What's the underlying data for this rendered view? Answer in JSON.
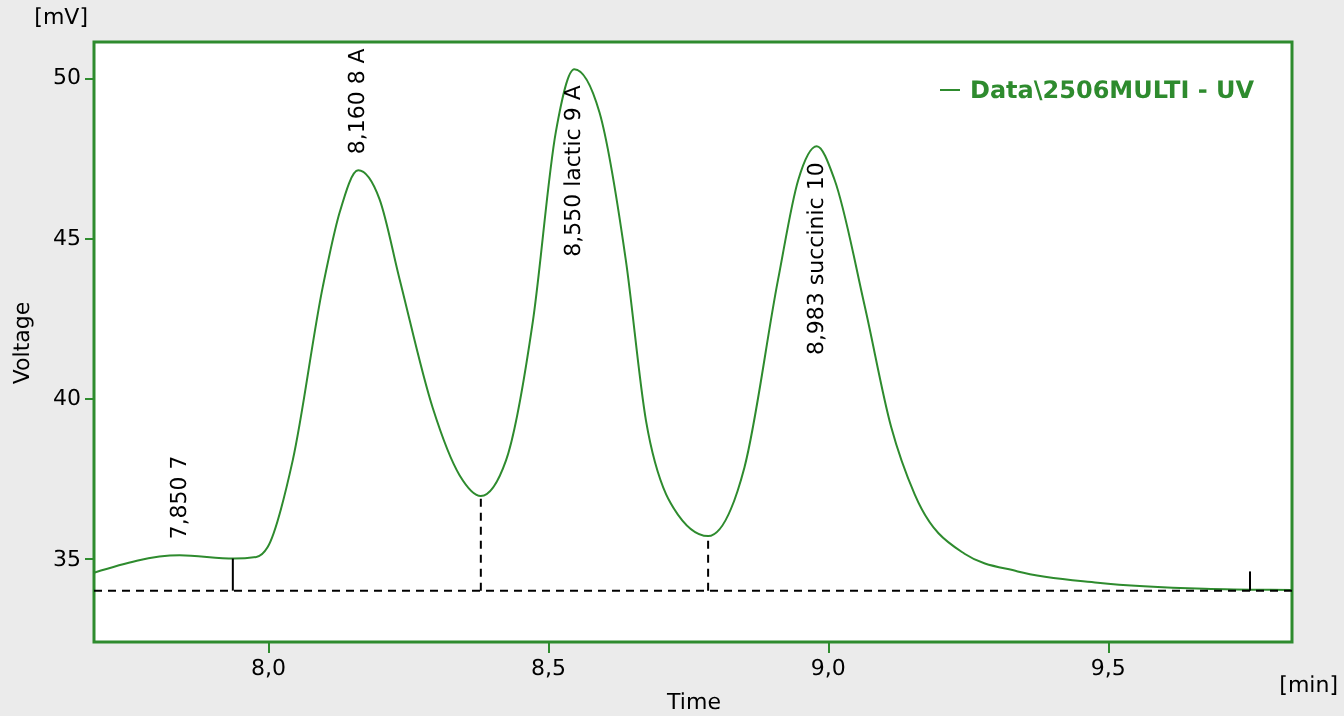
{
  "chart_data": {
    "type": "line",
    "xlabel": "Time",
    "ylabel": "Voltage",
    "xlim": [
      7.69,
      9.83
    ],
    "ylim": [
      32.4,
      51.1
    ],
    "xticks": [
      {
        "value": 8.0,
        "label": "8,0"
      },
      {
        "value": 8.5,
        "label": "8,5"
      },
      {
        "value": 9.0,
        "label": "9,0"
      },
      {
        "value": 9.5,
        "label": "9,5"
      }
    ],
    "yticks": [
      35,
      40,
      45,
      50
    ],
    "grid": false,
    "legend": "top right",
    "marker": "none",
    "series": [
      {
        "name": "Data\\2506MULTI - UV",
        "color": "#2e8b2e",
        "line_style": "solid",
        "x": [
          7.69,
          7.843,
          7.94,
          7.98,
          8.0,
          8.045,
          8.099,
          8.129,
          8.162,
          8.2,
          8.236,
          8.295,
          8.343,
          8.381,
          8.426,
          8.474,
          8.515,
          8.548,
          8.593,
          8.64,
          8.676,
          8.712,
          8.721,
          8.787,
          8.852,
          8.912,
          8.948,
          8.981,
          9.013,
          9.067,
          9.114,
          9.156,
          9.245,
          9.34,
          9.483,
          9.674,
          9.829
        ],
        "values": [
          34.56,
          35.1,
          35.0,
          35.05,
          35.35,
          38.06,
          43.5,
          45.8,
          47.1,
          46.2,
          43.7,
          39.7,
          37.6,
          36.95,
          38.06,
          42.4,
          48.3,
          50.25,
          48.9,
          44.3,
          39.3,
          37.0,
          36.7,
          35.7,
          37.85,
          43.7,
          46.8,
          47.85,
          46.8,
          42.85,
          39.1,
          37.0,
          35.15,
          34.6,
          34.25,
          34.06,
          34.02
        ]
      },
      {
        "color": "#000000",
        "type": "line",
        "line_style": "solid",
        "x": [
          7.938,
          7.938
        ],
        "values": [
          34.0,
          35.0
        ]
      },
      {
        "color": "#000000",
        "type": "line",
        "line_style": "dashed",
        "x": [
          8.381,
          8.381
        ],
        "values": [
          34.0,
          36.95
        ]
      },
      {
        "color": "#000000",
        "type": "line",
        "line_style": "dashed",
        "x": [
          8.787,
          8.787
        ],
        "values": [
          34.0,
          35.7
        ]
      },
      {
        "color": "#000000",
        "type": "line",
        "line_style": "solid",
        "x": [
          9.755,
          9.755
        ],
        "values": [
          34.0,
          34.6
        ]
      }
    ],
    "ref_lines": [
      {
        "axis": "y",
        "value": 34.0,
        "color": "#000000",
        "line_style": "dashed"
      }
    ],
    "annotations": [
      "[mV]",
      "[min]",
      {
        "text": "7,850  7",
        "x": 7.843,
        "y": 35.1
      },
      {
        "text": "8,160  8 A",
        "x": 8.162,
        "y": 47.1
      },
      {
        "text": "8,550 lactic  9 A",
        "x": 8.548,
        "y": 50.25
      },
      {
        "text": "8,983 succinic  10",
        "x": 8.981,
        "y": 47.85
      }
    ]
  }
}
